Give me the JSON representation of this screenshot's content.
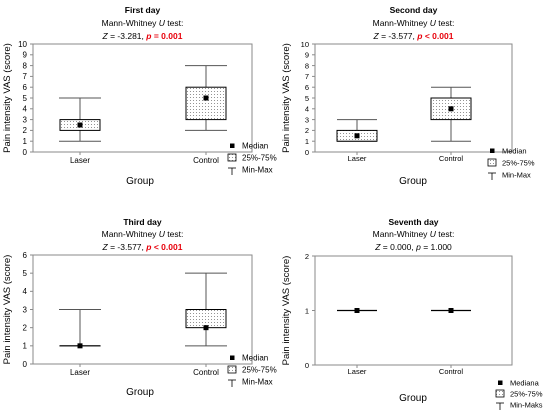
{
  "chart_data": [
    {
      "type": "box",
      "title": "First day",
      "test_line": {
        "prefix": "Mann-Whitney ",
        "italic": "U",
        "suffix": " test:"
      },
      "stats": {
        "z_label": "Z",
        "z_text": " = -3.281, ",
        "p_label": "p",
        "p_text": " = 0.001",
        "p_highlight": true
      },
      "xlabel": "Group",
      "ylabel": "Pain intensity VAS (score)",
      "ylim": [
        0,
        10
      ],
      "yticks": [
        "0",
        "1",
        "2",
        "3",
        "4",
        "5",
        "6",
        "7",
        "8",
        "9",
        "10"
      ],
      "categories": [
        "Laser",
        "Control"
      ],
      "series": [
        {
          "group": "Laser",
          "min": 1,
          "q1": 2,
          "median": 2.5,
          "q3": 3,
          "max": 5
        },
        {
          "group": "Control",
          "min": 2,
          "q1": 3,
          "median": 5,
          "q3": 6,
          "max": 8
        }
      ],
      "legend": {
        "median": "Median",
        "box": "25%-75%",
        "whisker": "Min-Max"
      }
    },
    {
      "type": "box",
      "title": "Second day",
      "test_line": {
        "prefix": "Mann-Whitney ",
        "italic": "U",
        "suffix": " test:"
      },
      "stats": {
        "z_label": "Z",
        "z_text": " = -3.577, ",
        "p_label": "p",
        "p_text": " < 0.001",
        "p_highlight": true
      },
      "xlabel": "Group",
      "ylabel": "Pain intensity VAS (score)",
      "ylim": [
        0,
        10
      ],
      "yticks": [
        "0",
        "1",
        "2",
        "3",
        "4",
        "5",
        "6",
        "7",
        "8",
        "9",
        "10"
      ],
      "categories": [
        "Laser",
        "Control"
      ],
      "series": [
        {
          "group": "Laser",
          "min": 1,
          "q1": 1,
          "median": 1.5,
          "q3": 2,
          "max": 3
        },
        {
          "group": "Control",
          "min": 1,
          "q1": 3,
          "median": 4,
          "q3": 5,
          "max": 6
        }
      ],
      "legend": {
        "median": "Median",
        "box": "25%-75%",
        "whisker": "Min-Max"
      }
    },
    {
      "type": "box",
      "title": "Third day",
      "test_line": {
        "prefix": "Mann-Whitney ",
        "italic": "U",
        "suffix": " test:"
      },
      "stats": {
        "z_label": "Z",
        "z_text": " = -3.577, ",
        "p_label": "p",
        "p_text": " < 0.001",
        "p_highlight": true
      },
      "xlabel": "Group",
      "ylabel": "Pain intensity VAS (score)",
      "ylim": [
        0,
        6
      ],
      "yticks": [
        "0",
        "1",
        "2",
        "3",
        "4",
        "5",
        "6"
      ],
      "categories": [
        "Laser",
        "Control"
      ],
      "series": [
        {
          "group": "Laser",
          "min": 1,
          "q1": 1,
          "median": 1,
          "q3": 1,
          "max": 3
        },
        {
          "group": "Control",
          "min": 1,
          "q1": 2,
          "median": 2,
          "q3": 3,
          "max": 5
        }
      ],
      "legend": {
        "median": "Median",
        "box": "25%-75%",
        "whisker": "Min-Max"
      }
    },
    {
      "type": "box",
      "title": "Seventh day",
      "test_line": {
        "prefix": "Mann-Whitney ",
        "italic": "U",
        "suffix": " test:"
      },
      "stats": {
        "z_label": "Z",
        "z_text": " = 0.000,   ",
        "p_label": "p",
        "p_text": " = 1.000",
        "p_highlight": false
      },
      "xlabel": "Group",
      "ylabel": "Pain intensity VAS (score)",
      "ylim": [
        0,
        2
      ],
      "yticks": [
        "0",
        "1",
        "2"
      ],
      "categories": [
        "Laser",
        "Control"
      ],
      "series": [
        {
          "group": "Laser",
          "min": 1,
          "q1": 1,
          "median": 1,
          "q3": 1,
          "max": 1
        },
        {
          "group": "Control",
          "min": 1,
          "q1": 1,
          "median": 1,
          "q3": 1,
          "max": 1
        }
      ],
      "legend": {
        "median": "Mediana",
        "box": "25%-75%",
        "whisker": "Min-Maks"
      }
    }
  ],
  "colors": {
    "p_highlight": "#e8000b",
    "axis": "#8a8a8a",
    "box_border": "#000000"
  }
}
